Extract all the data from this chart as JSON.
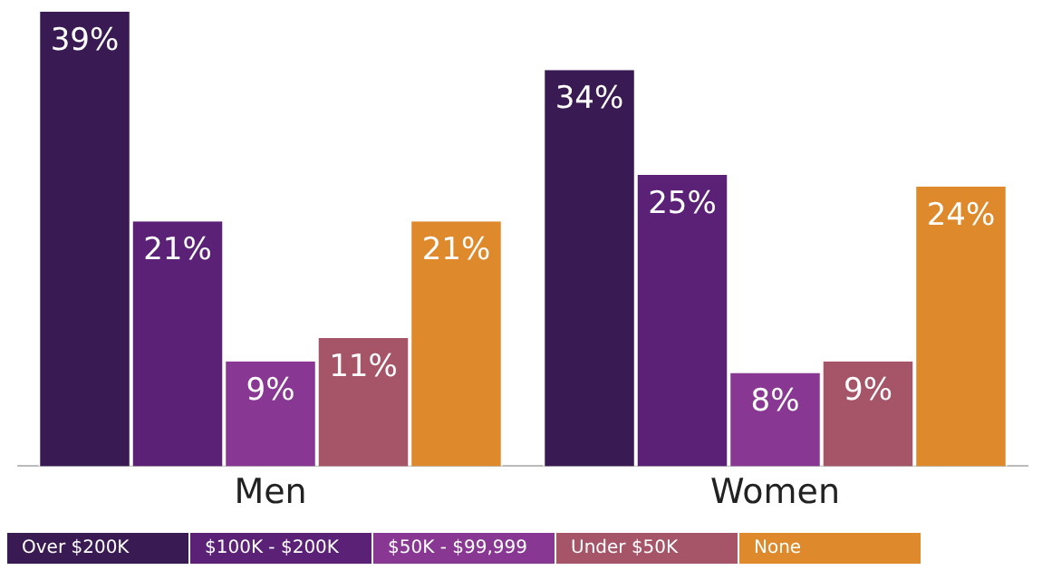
{
  "chart_data": {
    "type": "bar",
    "categories": [
      "Men",
      "Women"
    ],
    "series": [
      {
        "name": "Over $200K",
        "color": "#3a1a52",
        "values": [
          39,
          34
        ],
        "value_labels": [
          "39%",
          "34%"
        ]
      },
      {
        "name": "$100K - $200K",
        "color": "#5b2177",
        "values": [
          21,
          25
        ],
        "value_labels": [
          "21%",
          "25%"
        ]
      },
      {
        "name": "$50K - $99,999",
        "color": "#883892",
        "values": [
          9,
          8
        ],
        "value_labels": [
          "9%",
          "8%"
        ]
      },
      {
        "name": "Under $50K",
        "color": "#a65468",
        "values": [
          11,
          9
        ],
        "value_labels": [
          "11%",
          "9%"
        ]
      },
      {
        "name": "None",
        "color": "#de8a2c",
        "values": [
          21,
          24
        ],
        "value_labels": [
          "21%",
          "24%"
        ]
      }
    ],
    "legend": "bottom",
    "grid": false
  }
}
